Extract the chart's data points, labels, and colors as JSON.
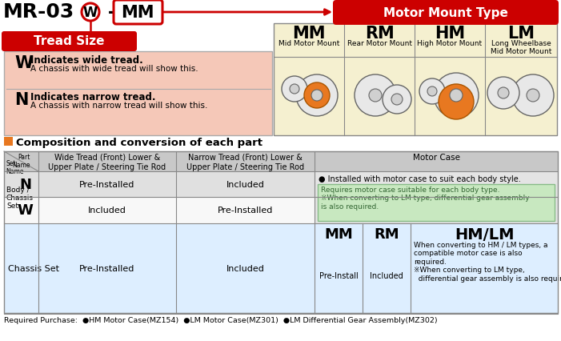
{
  "motor_mount_label": "Motor Mount Type",
  "tread_size_label": "Tread Size",
  "w_bold": "W",
  "w_line1": "Indicates wide tread.",
  "w_line2": "A chassis with wide tread will show this.",
  "n_bold": "N",
  "n_line1": "Indicates narrow tread.",
  "n_line2": "A chassis with narrow tread will show this.",
  "mm_label": "MM",
  "mm_sub": "Mid Motor Mount",
  "rm_label": "RM",
  "rm_sub": "Rear Motor Mount",
  "hm_label": "HM",
  "hm_sub": "High Motor Mount",
  "lm_label": "LM",
  "lm_sub": "Long Wheelbase\nMid Motor Mount",
  "section2_title": "Composition and conversion of each part",
  "col1_header": "Wide Tread (Front) Lower &\nUpper Plate / Steering Tie Rod",
  "col2_header": "Narrow Tread (Front) Lower &\nUpper Plate / Steering Tie Rod",
  "col3_header": "Motor Case",
  "n_col1": "Pre-Installed",
  "n_col2": "Included",
  "w_col1": "Included",
  "w_col2": "Pre-Installed",
  "motor_case_bullet": "● Installed with motor case to suit each body style.",
  "motor_case_note": "Requires motor case suitable for each body type.\n※When converting to LM type, differential gear assembly\nis also required.",
  "chassis_set_label": "Chassis Set",
  "chassis_col1": "Pre-Installed",
  "chassis_col2": "Included",
  "mm_chassis": "MM",
  "rm_chassis": "RM",
  "hmlm_chassis": "HM/LM",
  "mm_chassis_val": "Pre-Install",
  "rm_chassis_val": "Included",
  "hmlm_note": "When converting to HM / LM types, a\ncompatible motor case is also\nrequired.\n※When converting to LM type,\n  differential gear assembly is also required.",
  "footer": "Required Purchase:  ●HM Motor Case(MZ154)  ●LM Motor Case(MZ301)  ●LM Differential Gear Assembly(MZ302)",
  "bg_color": "#ffffff",
  "red_color": "#cc0000",
  "tread_bg": "#f5c8b8",
  "motor_mount_bg": "#f5f0d0",
  "table_header_bg": "#c8c8c8",
  "table_n_bg": "#e0e0e0",
  "table_w_bg": "#f8f8f8",
  "green_bg": "#c8e8c0",
  "chassis_bg": "#ddeeff",
  "orange_accent": "#e87820"
}
